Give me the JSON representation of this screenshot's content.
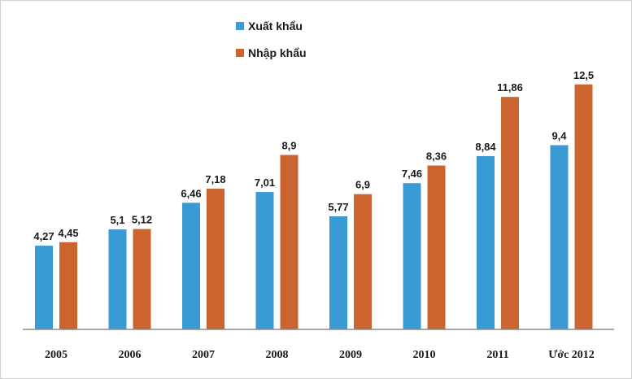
{
  "chart_data": {
    "type": "bar",
    "categories": [
      "2005",
      "2006",
      "2007",
      "2008",
      "2009",
      "2010",
      "2011",
      "Ước 2012"
    ],
    "series": [
      {
        "name": "Xuất khẩu",
        "color": "#3a9ad4",
        "values": [
          4.27,
          5.1,
          6.46,
          7.01,
          5.77,
          7.46,
          8.84,
          9.4
        ],
        "labels": [
          "4,27",
          "5,1",
          "6,46",
          "7,01",
          "5,77",
          "7,46",
          "8,84",
          "9,4"
        ]
      },
      {
        "name": "Nhập khẩu",
        "color": "#cc6430",
        "values": [
          4.45,
          5.12,
          7.18,
          8.9,
          6.9,
          8.36,
          11.86,
          12.5
        ],
        "labels": [
          "4,45",
          "5,12",
          "7,18",
          "8,9",
          "6,9",
          "8,36",
          "11,86",
          "12,5"
        ]
      }
    ],
    "ylim": [
      0,
      14
    ],
    "grid": false,
    "legend_position": "top-left"
  }
}
